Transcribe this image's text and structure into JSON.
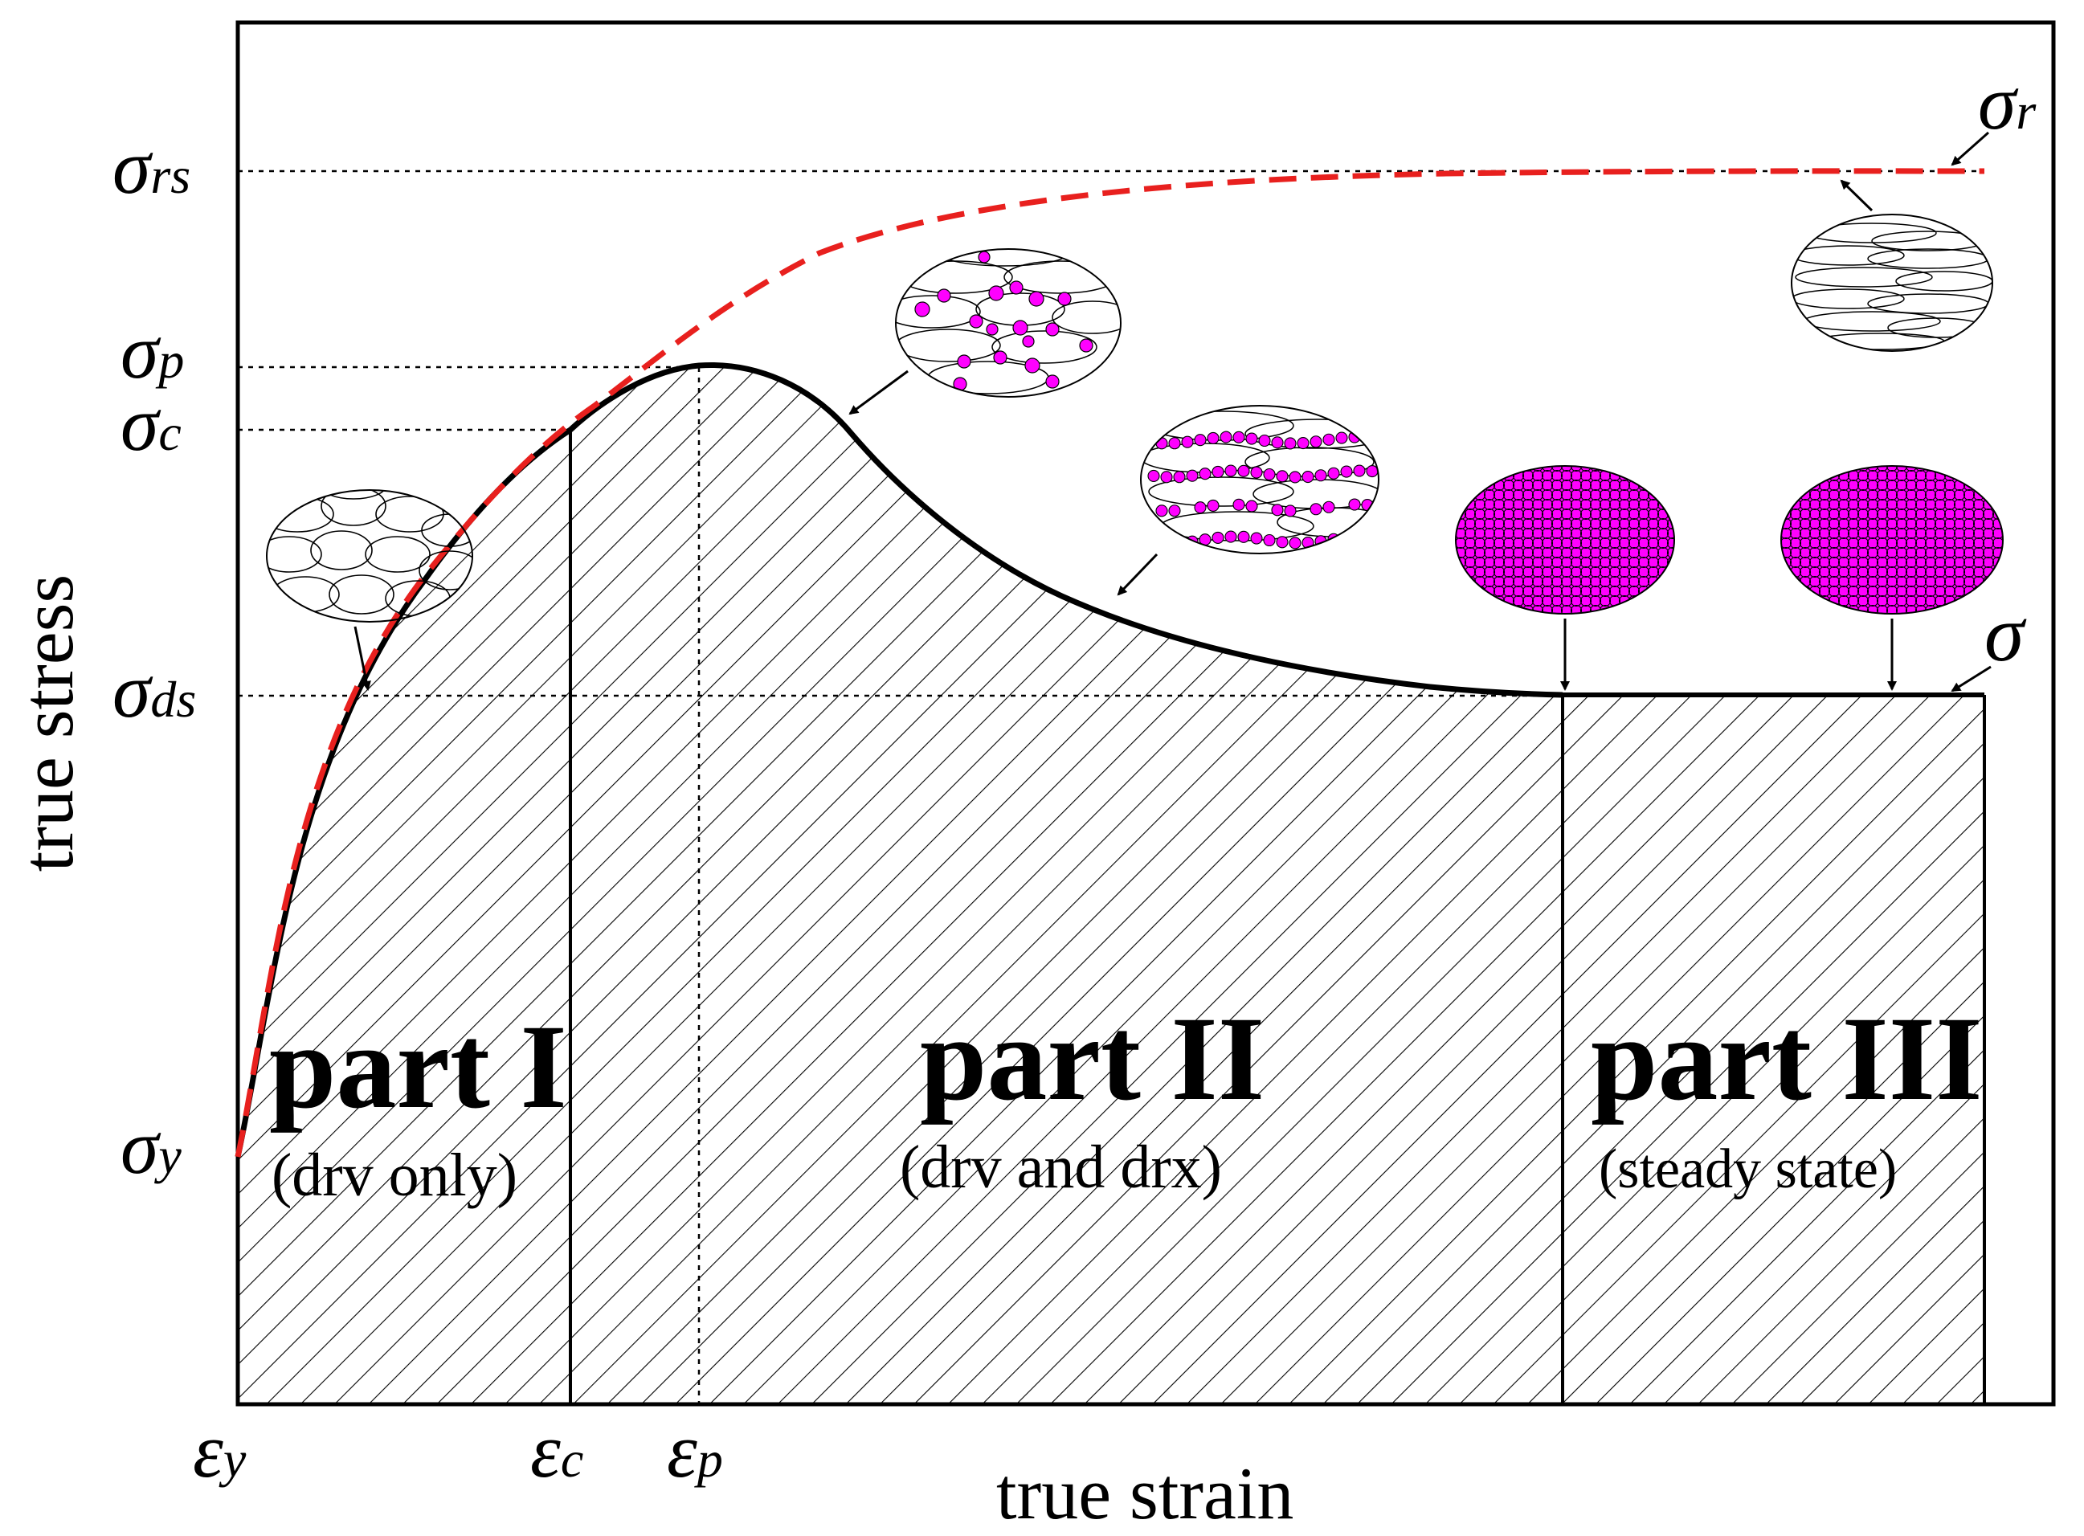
{
  "axes": {
    "x_label": "true strain",
    "y_label": "true stress"
  },
  "y_ticks": [
    {
      "sym": "σ",
      "sub": "rs"
    },
    {
      "sym": "σ",
      "sub": "p"
    },
    {
      "sym": "σ",
      "sub": "c"
    },
    {
      "sym": "σ",
      "sub": "ds"
    },
    {
      "sym": "σ",
      "sub": "y"
    }
  ],
  "x_ticks": [
    {
      "sym": "ε",
      "sub": "y"
    },
    {
      "sym": "ε",
      "sub": "c"
    },
    {
      "sym": "ε",
      "sub": "p"
    }
  ],
  "curve_labels": {
    "sigma_r": {
      "sym": "σ",
      "sub": "r"
    },
    "sigma": {
      "sym": "σ"
    }
  },
  "parts": [
    {
      "title": "part I",
      "desc": "(drv only)"
    },
    {
      "title": "part II",
      "desc": "(drv and drx)"
    },
    {
      "title": "part III",
      "desc": "(steady state)"
    }
  ],
  "colors": {
    "recovery_curve": "#e8201e",
    "drx_grains": "#ff00ff",
    "line": "#000000"
  }
}
